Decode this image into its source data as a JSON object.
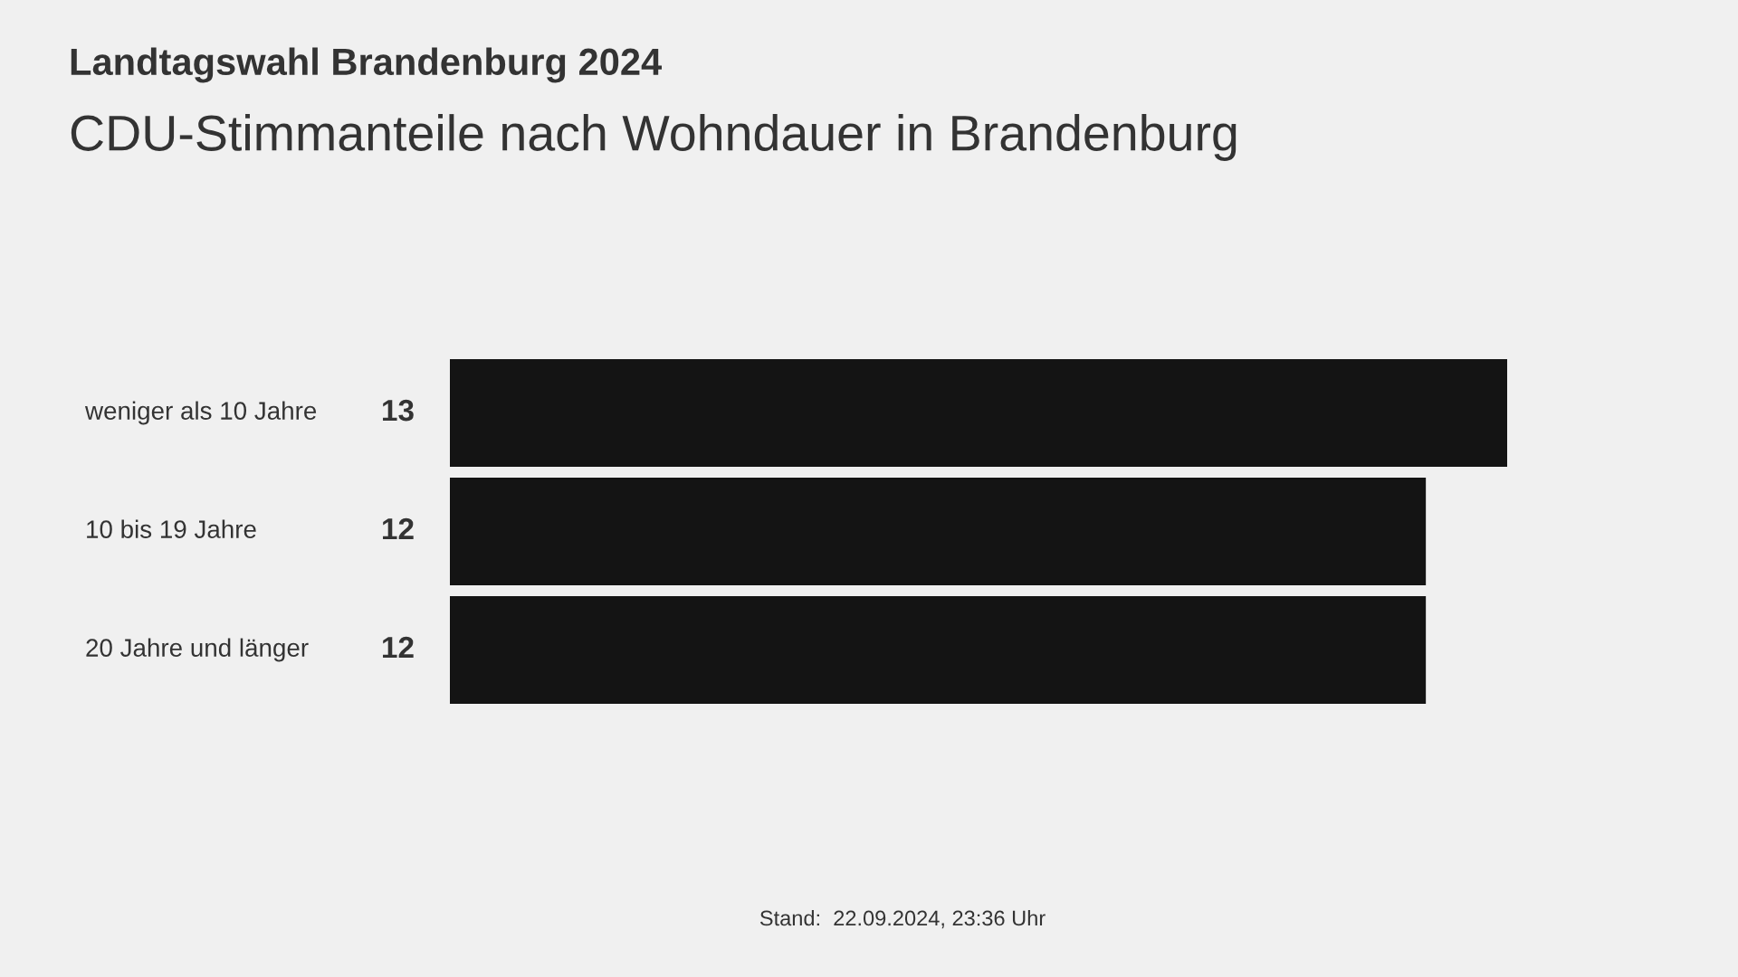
{
  "chart_data": {
    "type": "bar",
    "orientation": "horizontal",
    "title": "Landtagswahl Brandenburg 2024",
    "subtitle": "CDU-Stimmanteile nach Wohndauer in Brandenburg",
    "categories": [
      "weniger als 10 Jahre",
      "10 bis 19 Jahre",
      "20 Jahre und länger"
    ],
    "values": [
      13,
      12,
      12
    ],
    "color": "#141414",
    "data_labels": true,
    "annotations": [
      "Stand:  22.09.2024, 23:36 Uhr"
    ]
  }
}
